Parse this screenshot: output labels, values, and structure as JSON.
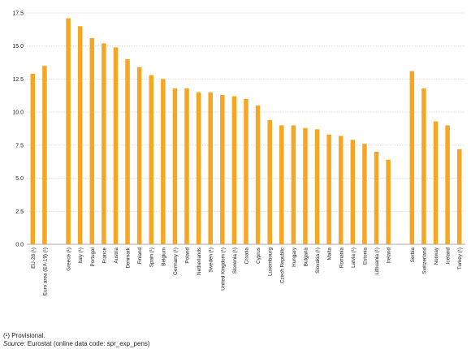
{
  "chart_data": {
    "type": "bar",
    "categories": [
      "EU-28 (¹)",
      "Euro area (EA-19) (¹)",
      "",
      "Greece (¹)",
      "Italy (¹)",
      "Portugal",
      "France",
      "Austria",
      "Denmark",
      "Finland",
      "Spain (¹)",
      "Belgium",
      "Germany (¹)",
      "Poland",
      "Netherlands",
      "Sweden (¹)",
      "United Kingdom (¹)",
      "Slovenia (¹)",
      "Croatia",
      "Cyprus",
      "Luxembourg",
      "Czech Republic",
      "Hungary",
      "Bulgaria",
      "Slovakia (¹)",
      "Malta",
      "Romania",
      "Latvia (¹)",
      "Estonia",
      "Lithuania (¹)",
      "Ireland",
      "",
      "Serbia",
      "Switzerland",
      "Norway",
      "Iceland",
      "Turkey (¹)"
    ],
    "values": [
      12.9,
      13.5,
      null,
      17.1,
      16.5,
      15.6,
      15.2,
      14.9,
      14.0,
      13.4,
      12.8,
      12.5,
      11.8,
      11.8,
      11.5,
      11.5,
      11.3,
      11.2,
      11.0,
      10.5,
      9.4,
      9.0,
      9.0,
      8.8,
      8.7,
      8.3,
      8.2,
      7.9,
      7.6,
      7.0,
      6.4,
      null,
      13.1,
      11.8,
      9.3,
      9.0,
      7.2
    ],
    "title": "",
    "xlabel": "",
    "ylabel": "",
    "ylim": [
      0,
      17.5
    ],
    "yticks": [
      "0.0",
      "2.5",
      "5.0",
      "7.5",
      "10.0",
      "12.5",
      "15.0",
      "17.5"
    ],
    "grid": true,
    "bar_color": "#F5A623",
    "grid_color": "#cccccc"
  },
  "footnotes": {
    "provisional": "(¹) Provisional.",
    "source_label": "Source:",
    "source_text": " Eurostat (online data code: spr_exp_pens)"
  }
}
